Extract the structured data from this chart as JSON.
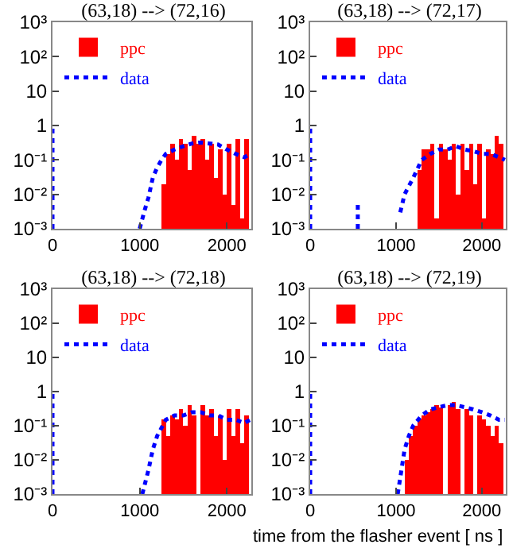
{
  "chart_data": [
    {
      "type": "bar",
      "title": "(63,18) --> (72,16)",
      "log": true,
      "legend": "top",
      "xlim": [
        0,
        2280
      ],
      "xticks": [
        0,
        1000,
        2000
      ],
      "ylim": [
        0.001,
        1000
      ],
      "yticks": [
        {
          "value": 1000,
          "label": "10³"
        },
        {
          "value": 100,
          "label": "10²"
        },
        {
          "value": 10,
          "label": "10"
        },
        {
          "value": 1,
          "label": "1"
        },
        {
          "value": 0.1,
          "label": "10⁻¹"
        },
        {
          "value": 0.01,
          "label": "10⁻²"
        },
        {
          "value": 0.001,
          "label": "10⁻³"
        }
      ],
      "series": [
        {
          "name": "ppc",
          "color": "#ff0000",
          "x": [
            1275,
            1325,
            1375,
            1425,
            1475,
            1525,
            1575,
            1625,
            1675,
            1725,
            1775,
            1825,
            1875,
            1925,
            1975,
            2025,
            2075,
            2125,
            2175,
            2225
          ],
          "values": [
            0.02,
            0.15,
            0.3,
            0.1,
            0.4,
            0.3,
            0.05,
            0.5,
            0.3,
            0.4,
            0.1,
            0.3,
            0.03,
            0.2,
            0.01,
            0.3,
            0.005,
            0.4,
            0.002,
            0.4
          ]
        },
        {
          "name": "data",
          "type": "line",
          "line_style": "dotted",
          "color": "#0000ff",
          "x": [
            0,
            0,
            null,
            1000,
            1050,
            1100,
            1150,
            1200,
            1250,
            1300,
            1400,
            1500,
            1600,
            1700,
            1800,
            1900,
            2000,
            2100,
            2200,
            2270
          ],
          "values": [
            0.001,
            1,
            null,
            0.001,
            0.003,
            0.008,
            0.03,
            0.06,
            0.1,
            0.15,
            0.2,
            0.25,
            0.3,
            0.32,
            0.3,
            0.28,
            0.2,
            0.15,
            0.12,
            0.15
          ]
        }
      ]
    },
    {
      "type": "bar",
      "title": "(63,18) --> (72,17)",
      "log": true,
      "legend": "top",
      "xlim": [
        0,
        2280
      ],
      "xticks": [
        0,
        1000,
        2000
      ],
      "ylim": [
        0.001,
        1000
      ],
      "yticks": [
        {
          "value": 1000,
          "label": "10³"
        },
        {
          "value": 100,
          "label": "10²"
        },
        {
          "value": 10,
          "label": "10"
        },
        {
          "value": 1,
          "label": "1"
        },
        {
          "value": 0.1,
          "label": "10⁻¹"
        },
        {
          "value": 0.01,
          "label": "10⁻²"
        },
        {
          "value": 0.001,
          "label": "10⁻³"
        }
      ],
      "series": [
        {
          "name": "ppc",
          "color": "#ff0000",
          "x": [
            1275,
            1325,
            1375,
            1425,
            1475,
            1525,
            1575,
            1625,
            1675,
            1725,
            1775,
            1825,
            1875,
            1925,
            1975,
            2025,
            2075,
            2125,
            2175,
            2225
          ],
          "values": [
            0.05,
            0.2,
            0.2,
            0.3,
            0.002,
            0.3,
            0.2,
            0.1,
            0.3,
            0.01,
            0.3,
            0.05,
            0.3,
            0.02,
            0.3,
            0.002,
            0.2,
            0.15,
            0.5,
            0.3
          ]
        },
        {
          "name": "data",
          "type": "line",
          "line_style": "dotted",
          "color": "#0000ff",
          "x": [
            0,
            0,
            null,
            555,
            555,
            null,
            1050,
            1100,
            1200,
            1300,
            1400,
            1500,
            1600,
            1700,
            1800,
            1900,
            2000,
            2100,
            2200,
            2270
          ],
          "values": [
            0.001,
            1,
            null,
            0.001,
            0.006,
            null,
            0.003,
            0.01,
            0.03,
            0.1,
            0.15,
            0.2,
            0.2,
            0.25,
            0.2,
            0.18,
            0.15,
            0.15,
            0.12,
            0.1
          ]
        }
      ]
    },
    {
      "type": "bar",
      "title": "(63,18) --> (72,18)",
      "log": true,
      "legend": "top",
      "xlim": [
        0,
        2280
      ],
      "xticks": [
        0,
        1000,
        2000
      ],
      "ylim": [
        0.001,
        1000
      ],
      "yticks": [
        {
          "value": 1000,
          "label": "10³"
        },
        {
          "value": 100,
          "label": "10²"
        },
        {
          "value": 10,
          "label": "10"
        },
        {
          "value": 1,
          "label": "1"
        },
        {
          "value": 0.1,
          "label": "10⁻¹"
        },
        {
          "value": 0.01,
          "label": "10⁻²"
        },
        {
          "value": 0.001,
          "label": "10⁻³"
        }
      ],
      "series": [
        {
          "name": "ppc",
          "color": "#ff0000",
          "x": [
            1275,
            1325,
            1375,
            1425,
            1475,
            1525,
            1575,
            1625,
            1675,
            1725,
            1775,
            1825,
            1875,
            1925,
            1975,
            2025,
            2075,
            2125,
            2175,
            2225
          ],
          "values": [
            0.15,
            0.05,
            0.2,
            0.15,
            0.3,
            0.1,
            0.4,
            0.2,
            0.001,
            0.4,
            0.2,
            0.3,
            0.05,
            0.2,
            0.01,
            0.3,
            0.05,
            0.3,
            0.03,
            0.2
          ]
        },
        {
          "name": "data",
          "type": "line",
          "line_style": "dotted",
          "color": "#0000ff",
          "x": [
            0,
            0,
            null,
            1030,
            1100,
            1150,
            1200,
            1300,
            1400,
            1500,
            1600,
            1700,
            1800,
            1900,
            2000,
            2100,
            2200,
            2270
          ],
          "values": [
            0.001,
            1,
            null,
            0.001,
            0.005,
            0.02,
            0.05,
            0.15,
            0.2,
            0.2,
            0.25,
            0.25,
            0.2,
            0.2,
            0.15,
            0.15,
            0.12,
            0.15
          ]
        }
      ]
    },
    {
      "type": "bar",
      "title": "(63,18) --> (72,19)",
      "xlabel": "time from the flasher event [ ns ]",
      "log": true,
      "legend": "top",
      "xlim": [
        0,
        2280
      ],
      "xticks": [
        0,
        1000,
        2000
      ],
      "ylim": [
        0.001,
        1000
      ],
      "yticks": [
        {
          "value": 1000,
          "label": "10³"
        },
        {
          "value": 100,
          "label": "10²"
        },
        {
          "value": 10,
          "label": "10"
        },
        {
          "value": 1,
          "label": "1"
        },
        {
          "value": 0.1,
          "label": "10⁻¹"
        },
        {
          "value": 0.01,
          "label": "10⁻²"
        },
        {
          "value": 0.001,
          "label": "10⁻³"
        }
      ],
      "series": [
        {
          "name": "ppc",
          "color": "#ff0000",
          "x": [
            1125,
            1175,
            1225,
            1275,
            1325,
            1375,
            1425,
            1475,
            1525,
            1575,
            1625,
            1675,
            1725,
            1775,
            1825,
            1875,
            1925,
            1975,
            2025,
            2075,
            2125,
            2175,
            2225
          ],
          "values": [
            0.01,
            0.05,
            0.1,
            0.15,
            0.2,
            0.25,
            0.3,
            0.4,
            0.35,
            0.001,
            0.4,
            0.5,
            0.3,
            0.001,
            0.3,
            0.2,
            0.001,
            0.2,
            0.15,
            0.1,
            0.05,
            0.1,
            0.03
          ]
        },
        {
          "name": "data",
          "type": "line",
          "line_style": "dotted",
          "color": "#0000ff",
          "x": [
            0,
            0,
            null,
            1020,
            1050,
            1100,
            1150,
            1200,
            1300,
            1400,
            1500,
            1600,
            1700,
            1800,
            1900,
            2000,
            2100,
            2200,
            2270
          ],
          "values": [
            0.001,
            1,
            null,
            0.001,
            0.003,
            0.02,
            0.05,
            0.1,
            0.2,
            0.3,
            0.35,
            0.4,
            0.4,
            0.35,
            0.3,
            0.25,
            0.2,
            0.15,
            0.15
          ]
        }
      ]
    }
  ]
}
